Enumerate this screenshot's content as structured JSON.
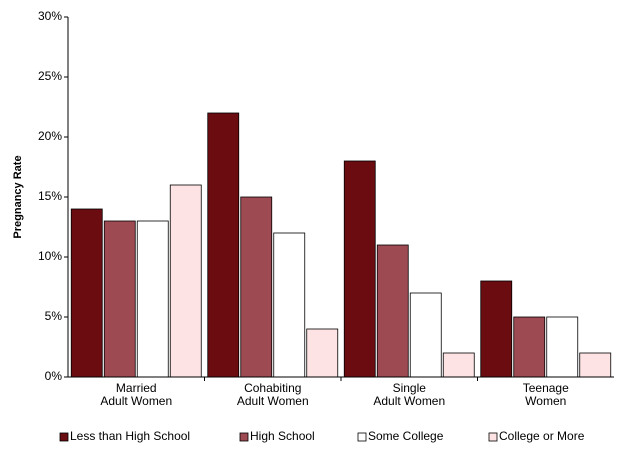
{
  "chart_data": {
    "type": "bar",
    "y_label": "Pregnancy Rate",
    "categories": [
      "Married\nAdult Women",
      "Cohabiting\nAdult Women",
      "Single\nAdult Women",
      "Teenage\nWomen"
    ],
    "series": [
      {
        "name": "Less than High School",
        "color": "#6b0c10",
        "values": [
          14,
          22,
          18,
          8
        ]
      },
      {
        "name": "High School",
        "color": "#9e4a52",
        "values": [
          13,
          15,
          11,
          5
        ]
      },
      {
        "name": "Some College",
        "color": "#ffffff",
        "values": [
          13,
          12,
          7,
          5
        ]
      },
      {
        "name": "College or More",
        "color": "#fde3e3",
        "values": [
          16,
          4,
          2,
          2
        ]
      }
    ],
    "ylim": [
      0,
      30
    ],
    "yticks": [
      {
        "value": 0,
        "label": "0%"
      },
      {
        "value": 5,
        "label": "5%"
      },
      {
        "value": 10,
        "label": "10%"
      },
      {
        "value": 15,
        "label": "15%"
      },
      {
        "value": 20,
        "label": "20%"
      },
      {
        "value": 25,
        "label": "25%"
      },
      {
        "value": 30,
        "label": "30%"
      }
    ],
    "legend": "bottom"
  }
}
